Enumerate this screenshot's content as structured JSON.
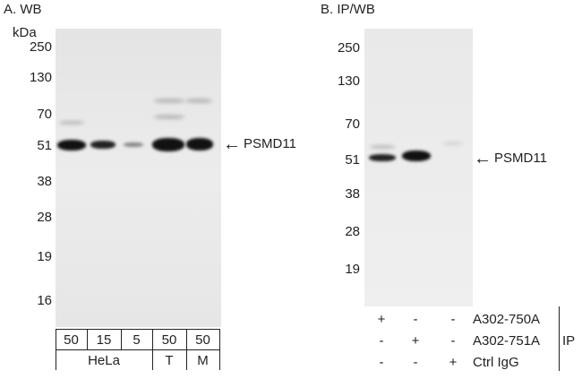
{
  "panel_a": {
    "title": "A. WB",
    "unit": "kDa",
    "markers": [
      "250",
      "130",
      "70",
      "51",
      "38",
      "28",
      "19",
      "16"
    ],
    "target_label": "PSMD11",
    "amounts": [
      "50",
      "15",
      "5",
      "50",
      "50"
    ],
    "cell_lines": [
      "HeLa",
      "T",
      "M"
    ]
  },
  "panel_b": {
    "title": "B. IP/WB",
    "markers": [
      "250",
      "130",
      "70",
      "51",
      "38",
      "28",
      "19"
    ],
    "target_label": "PSMD11",
    "rows": [
      {
        "signs": [
          "+",
          "-",
          "-"
        ],
        "label": "A302-750A"
      },
      {
        "signs": [
          "-",
          "+",
          "-"
        ],
        "label": "A302-751A"
      },
      {
        "signs": [
          "-",
          "-",
          "+"
        ],
        "label": "Ctrl IgG"
      }
    ],
    "ip_label": "IP"
  },
  "arrow_icon": "left-arrow"
}
